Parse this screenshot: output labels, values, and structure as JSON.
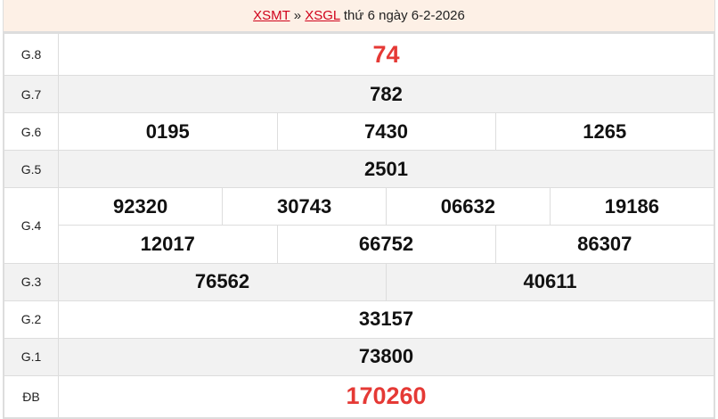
{
  "header": {
    "link1": "XSMT",
    "sep": "»",
    "link2": "XSGL",
    "text": "thứ 6 ngày 6-2-2026"
  },
  "prizes": [
    {
      "label": "G.8",
      "numbers": [
        "74"
      ]
    },
    {
      "label": "G.7",
      "numbers": [
        "782"
      ]
    },
    {
      "label": "G.6",
      "numbers": [
        "0195",
        "7430",
        "1265"
      ]
    },
    {
      "label": "G.5",
      "numbers": [
        "2501"
      ]
    },
    {
      "label": "G.4",
      "row1": [
        "92320",
        "30743",
        "06632",
        "19186"
      ],
      "row2": [
        "12017",
        "66752",
        "86307"
      ]
    },
    {
      "label": "G.3",
      "numbers": [
        "76562",
        "40611"
      ]
    },
    {
      "label": "G.2",
      "numbers": [
        "33157"
      ]
    },
    {
      "label": "G.1",
      "numbers": [
        "73800"
      ]
    },
    {
      "label": "ĐB",
      "numbers": [
        "170260"
      ]
    }
  ],
  "colors": {
    "accent": "#e53935",
    "header_bg": "#fdf0e6",
    "alt_row": "#f2f2f2"
  }
}
